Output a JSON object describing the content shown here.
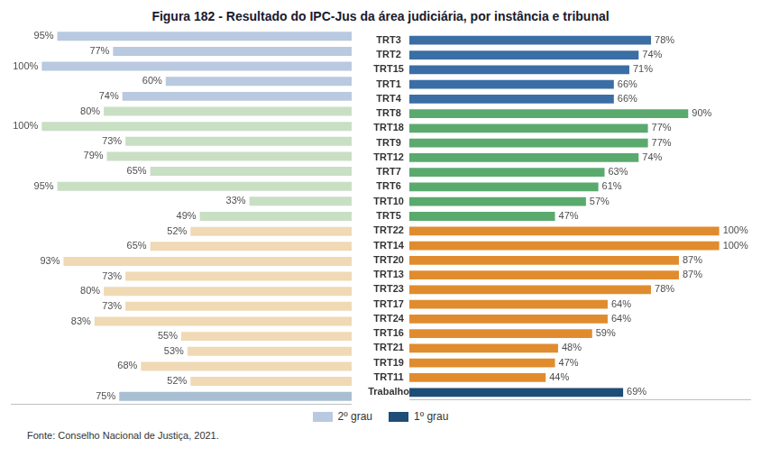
{
  "chart_data": {
    "type": "bar",
    "orientation": "horizontal",
    "title": "Figura 182 - Resultado do IPC-Jus da área judiciária, por instância e tribunal",
    "annotations": [
      "Fonte: Conselho Nacional de Justiça, 2021."
    ],
    "categories": [
      "TRT3",
      "TRT2",
      "TRT15",
      "TRT1",
      "TRT4",
      "TRT8",
      "TRT18",
      "TRT9",
      "TRT12",
      "TRT7",
      "TRT6",
      "TRT10",
      "TRT5",
      "TRT22",
      "TRT14",
      "TRT20",
      "TRT13",
      "TRT23",
      "TRT17",
      "TRT24",
      "TRT16",
      "TRT21",
      "TRT19",
      "TRT11",
      "Trabalho"
    ],
    "series": [
      {
        "name": "2º grau",
        "color": "#b8c9e0",
        "colors": [
          "#b8c9e0",
          "#b8c9e0",
          "#b8c9e0",
          "#b8c9e0",
          "#b8c9e0",
          "#c8dfc4",
          "#c8dfc4",
          "#c8dfc4",
          "#c8dfc4",
          "#c8dfc4",
          "#c8dfc4",
          "#c8dfc4",
          "#c8dfc4",
          "#f0d9b5",
          "#f0d9b5",
          "#f0d9b5",
          "#f0d9b5",
          "#f0d9b5",
          "#f0d9b5",
          "#f0d9b5",
          "#f0d9b5",
          "#f0d9b5",
          "#f0d9b5",
          "#f0d9b5",
          "#a8bed2"
        ],
        "values": [
          95,
          77,
          100,
          60,
          74,
          80,
          100,
          73,
          79,
          65,
          95,
          33,
          49,
          52,
          65,
          93,
          73,
          80,
          73,
          83,
          55,
          53,
          68,
          52,
          75
        ],
        "value_labels": [
          "95%",
          "77%",
          "100%",
          "60%",
          "74%",
          "80%",
          "100%",
          "73%",
          "79%",
          "65%",
          "95%",
          "33%",
          "49%",
          "52%",
          "65%",
          "93%",
          "73%",
          "80%",
          "73%",
          "83%",
          "55%",
          "53%",
          "68%",
          "52%",
          "75%"
        ]
      },
      {
        "name": "1º grau",
        "color": "#1e4d78",
        "colors": [
          "#3a6ea5",
          "#3a6ea5",
          "#3a6ea5",
          "#3a6ea5",
          "#3a6ea5",
          "#5aaa6e",
          "#5aaa6e",
          "#5aaa6e",
          "#5aaa6e",
          "#5aaa6e",
          "#5aaa6e",
          "#5aaa6e",
          "#5aaa6e",
          "#e08c2e",
          "#e08c2e",
          "#e08c2e",
          "#e08c2e",
          "#e08c2e",
          "#e08c2e",
          "#e08c2e",
          "#e08c2e",
          "#e08c2e",
          "#e08c2e",
          "#e08c2e",
          "#1e4d78"
        ],
        "values": [
          78,
          74,
          71,
          66,
          66,
          90,
          77,
          77,
          74,
          63,
          61,
          57,
          47,
          100,
          100,
          87,
          87,
          78,
          64,
          64,
          59,
          48,
          47,
          44,
          69
        ],
        "value_labels": [
          "78%",
          "74%",
          "71%",
          "66%",
          "66%",
          "90%",
          "77%",
          "77%",
          "74%",
          "63%",
          "61%",
          "57%",
          "47%",
          "100%",
          "100%",
          "87%",
          "87%",
          "78%",
          "64%",
          "64%",
          "59%",
          "48%",
          "47%",
          "44%",
          "69%"
        ]
      }
    ],
    "xlim": [
      0,
      110
    ],
    "data_labels": true,
    "tick_labels": "y",
    "grid": false,
    "legend": "bottom"
  }
}
